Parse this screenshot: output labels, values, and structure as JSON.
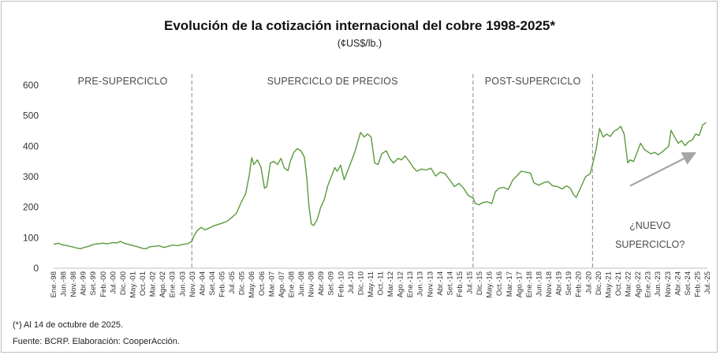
{
  "chart_data": {
    "type": "line",
    "title": "Evolución de la cotización internacional del cobre 1998-2025*",
    "subtitle": "(¢US$/lb.)",
    "ylim": [
      0,
      600
    ],
    "yticks": [
      0,
      100,
      200,
      300,
      400,
      500,
      600
    ],
    "xlim": [
      1998.0,
      2025.9
    ],
    "line_color": "#5a9a3c",
    "divider_color": "#9a9a9a",
    "arrow_color": "#a6a6a6",
    "x_tick_labels": [
      "Ene.-98",
      "Jun.-98",
      "Nov.-98",
      "Abr.-99",
      "Set.-99",
      "Feb.-00",
      "Jul.-00",
      "Dic.-00",
      "May.-01",
      "Oct.-01",
      "Mar.-02",
      "Ago.-02",
      "Ene.-03",
      "Jun.-03",
      "Nov.-03",
      "Abr.-04",
      "Set.-04",
      "Feb.-05",
      "Jul.-05",
      "Dic.-05",
      "May.-06",
      "Oct.-06",
      "Mar.-07",
      "Ago.-07",
      "Ene.-08",
      "Jun.-08",
      "Nov.-08",
      "Abr.-09",
      "Set.-09",
      "Feb.-10",
      "Jul.-10",
      "Dic.-10",
      "May.-11",
      "Oct.-11",
      "Mar.-12",
      "Ago.-12",
      "Ene.-13",
      "Jun.-13",
      "Nov.-13",
      "Abr.-14",
      "Set.-14",
      "Feb.-15",
      "Jul.-15",
      "Dic.-15",
      "May.-16",
      "Oct.-16",
      "Mar.-17",
      "Ago.-17",
      "Ene.-18",
      "Jun.-18",
      "Nov.-18",
      "Abr.-19",
      "Set.-19",
      "Feb.-20",
      "Jul.-20",
      "Dic.-20",
      "May.-21",
      "Oct.-21",
      "Mar.-22",
      "Ago.-22",
      "Ene.-23",
      "Jun.-23",
      "Nov.-23",
      "Abr.-24",
      "Set.-24",
      "Feb.-25",
      "Jul.-25"
    ],
    "regions": [
      {
        "label": "PRE-SUPERCICLO",
        "start": 1998.0,
        "end": 2003.9
      },
      {
        "label": "SUPERCICLO DE PRECIOS",
        "start": 2003.9,
        "end": 2015.9
      },
      {
        "label": "POST-SUPERCICLO",
        "start": 2015.9,
        "end": 2021.0
      },
      {
        "label": "",
        "start": 2021.0,
        "end": 2025.9
      }
    ],
    "dividers": [
      2003.9,
      2015.9,
      2021.0
    ],
    "annotation": {
      "lines": [
        "¿NUEVO",
        "SUPERCICLO?"
      ]
    },
    "arrow": {
      "from": [
        2022.6,
        270
      ],
      "to": [
        2025.3,
        375
      ]
    },
    "series": [
      {
        "name": "Cotización internacional del cobre",
        "points": [
          [
            1998.0,
            78
          ],
          [
            1998.2,
            82
          ],
          [
            1998.4,
            76
          ],
          [
            1998.6,
            74
          ],
          [
            1998.8,
            70
          ],
          [
            1999.0,
            66
          ],
          [
            1999.15,
            64
          ],
          [
            1999.3,
            68
          ],
          [
            1999.5,
            72
          ],
          [
            1999.7,
            78
          ],
          [
            1999.9,
            80
          ],
          [
            2000.1,
            82
          ],
          [
            2000.3,
            80
          ],
          [
            2000.5,
            84
          ],
          [
            2000.7,
            83
          ],
          [
            2000.85,
            88
          ],
          [
            2001.0,
            82
          ],
          [
            2001.2,
            78
          ],
          [
            2001.4,
            74
          ],
          [
            2001.6,
            70
          ],
          [
            2001.8,
            65
          ],
          [
            2001.95,
            64
          ],
          [
            2002.1,
            70
          ],
          [
            2002.3,
            72
          ],
          [
            2002.5,
            74
          ],
          [
            2002.7,
            68
          ],
          [
            2002.9,
            72
          ],
          [
            2003.1,
            76
          ],
          [
            2003.3,
            74
          ],
          [
            2003.5,
            78
          ],
          [
            2003.7,
            80
          ],
          [
            2003.9,
            88
          ],
          [
            2004.0,
            108
          ],
          [
            2004.15,
            125
          ],
          [
            2004.3,
            134
          ],
          [
            2004.45,
            126
          ],
          [
            2004.6,
            130
          ],
          [
            2004.8,
            138
          ],
          [
            2005.0,
            143
          ],
          [
            2005.2,
            148
          ],
          [
            2005.4,
            154
          ],
          [
            2005.6,
            166
          ],
          [
            2005.8,
            180
          ],
          [
            2006.0,
            215
          ],
          [
            2006.2,
            245
          ],
          [
            2006.35,
            305
          ],
          [
            2006.45,
            362
          ],
          [
            2006.55,
            340
          ],
          [
            2006.7,
            355
          ],
          [
            2006.85,
            330
          ],
          [
            2007.0,
            262
          ],
          [
            2007.1,
            268
          ],
          [
            2007.25,
            345
          ],
          [
            2007.4,
            350
          ],
          [
            2007.55,
            340
          ],
          [
            2007.7,
            360
          ],
          [
            2007.85,
            328
          ],
          [
            2008.0,
            320
          ],
          [
            2008.1,
            350
          ],
          [
            2008.25,
            380
          ],
          [
            2008.4,
            392
          ],
          [
            2008.55,
            385
          ],
          [
            2008.7,
            365
          ],
          [
            2008.8,
            300
          ],
          [
            2008.9,
            200
          ],
          [
            2009.0,
            145
          ],
          [
            2009.1,
            140
          ],
          [
            2009.25,
            160
          ],
          [
            2009.4,
            200
          ],
          [
            2009.55,
            225
          ],
          [
            2009.7,
            270
          ],
          [
            2009.85,
            300
          ],
          [
            2010.0,
            330
          ],
          [
            2010.1,
            318
          ],
          [
            2010.25,
            338
          ],
          [
            2010.4,
            290
          ],
          [
            2010.55,
            320
          ],
          [
            2010.7,
            350
          ],
          [
            2010.85,
            380
          ],
          [
            2011.0,
            420
          ],
          [
            2011.1,
            445
          ],
          [
            2011.25,
            430
          ],
          [
            2011.4,
            440
          ],
          [
            2011.55,
            430
          ],
          [
            2011.7,
            345
          ],
          [
            2011.85,
            340
          ],
          [
            2012.0,
            375
          ],
          [
            2012.2,
            385
          ],
          [
            2012.35,
            360
          ],
          [
            2012.5,
            345
          ],
          [
            2012.7,
            360
          ],
          [
            2012.85,
            355
          ],
          [
            2013.0,
            368
          ],
          [
            2013.2,
            348
          ],
          [
            2013.35,
            330
          ],
          [
            2013.5,
            318
          ],
          [
            2013.7,
            325
          ],
          [
            2013.9,
            322
          ],
          [
            2014.1,
            328
          ],
          [
            2014.3,
            302
          ],
          [
            2014.5,
            315
          ],
          [
            2014.7,
            310
          ],
          [
            2014.9,
            290
          ],
          [
            2015.1,
            268
          ],
          [
            2015.3,
            278
          ],
          [
            2015.5,
            262
          ],
          [
            2015.7,
            238
          ],
          [
            2015.9,
            230
          ],
          [
            2016.0,
            212
          ],
          [
            2016.15,
            208
          ],
          [
            2016.3,
            215
          ],
          [
            2016.5,
            218
          ],
          [
            2016.7,
            212
          ],
          [
            2016.85,
            250
          ],
          [
            2017.0,
            262
          ],
          [
            2017.2,
            265
          ],
          [
            2017.4,
            258
          ],
          [
            2017.6,
            290
          ],
          [
            2017.8,
            305
          ],
          [
            2017.95,
            318
          ],
          [
            2018.15,
            315
          ],
          [
            2018.35,
            312
          ],
          [
            2018.5,
            280
          ],
          [
            2018.7,
            272
          ],
          [
            2018.9,
            280
          ],
          [
            2019.1,
            284
          ],
          [
            2019.3,
            270
          ],
          [
            2019.5,
            268
          ],
          [
            2019.7,
            260
          ],
          [
            2019.9,
            270
          ],
          [
            2020.05,
            262
          ],
          [
            2020.2,
            240
          ],
          [
            2020.3,
            232
          ],
          [
            2020.5,
            265
          ],
          [
            2020.7,
            300
          ],
          [
            2020.9,
            310
          ],
          [
            2021.0,
            340
          ],
          [
            2021.15,
            390
          ],
          [
            2021.3,
            458
          ],
          [
            2021.45,
            430
          ],
          [
            2021.6,
            440
          ],
          [
            2021.75,
            432
          ],
          [
            2021.9,
            448
          ],
          [
            2022.05,
            455
          ],
          [
            2022.2,
            465
          ],
          [
            2022.35,
            440
          ],
          [
            2022.5,
            345
          ],
          [
            2022.6,
            355
          ],
          [
            2022.75,
            350
          ],
          [
            2022.9,
            380
          ],
          [
            2023.05,
            410
          ],
          [
            2023.2,
            390
          ],
          [
            2023.35,
            382
          ],
          [
            2023.5,
            375
          ],
          [
            2023.65,
            380
          ],
          [
            2023.8,
            372
          ],
          [
            2023.95,
            380
          ],
          [
            2024.1,
            390
          ],
          [
            2024.25,
            400
          ],
          [
            2024.35,
            452
          ],
          [
            2024.5,
            430
          ],
          [
            2024.65,
            410
          ],
          [
            2024.8,
            418
          ],
          [
            2024.95,
            402
          ],
          [
            2025.1,
            415
          ],
          [
            2025.25,
            420
          ],
          [
            2025.4,
            440
          ],
          [
            2025.55,
            435
          ],
          [
            2025.7,
            470
          ],
          [
            2025.85,
            478
          ]
        ]
      }
    ]
  },
  "footnote": "(*) Al 14 de octubre de 2025.",
  "source": "Fuente: BCRP. Elaboración: CooperAcción."
}
